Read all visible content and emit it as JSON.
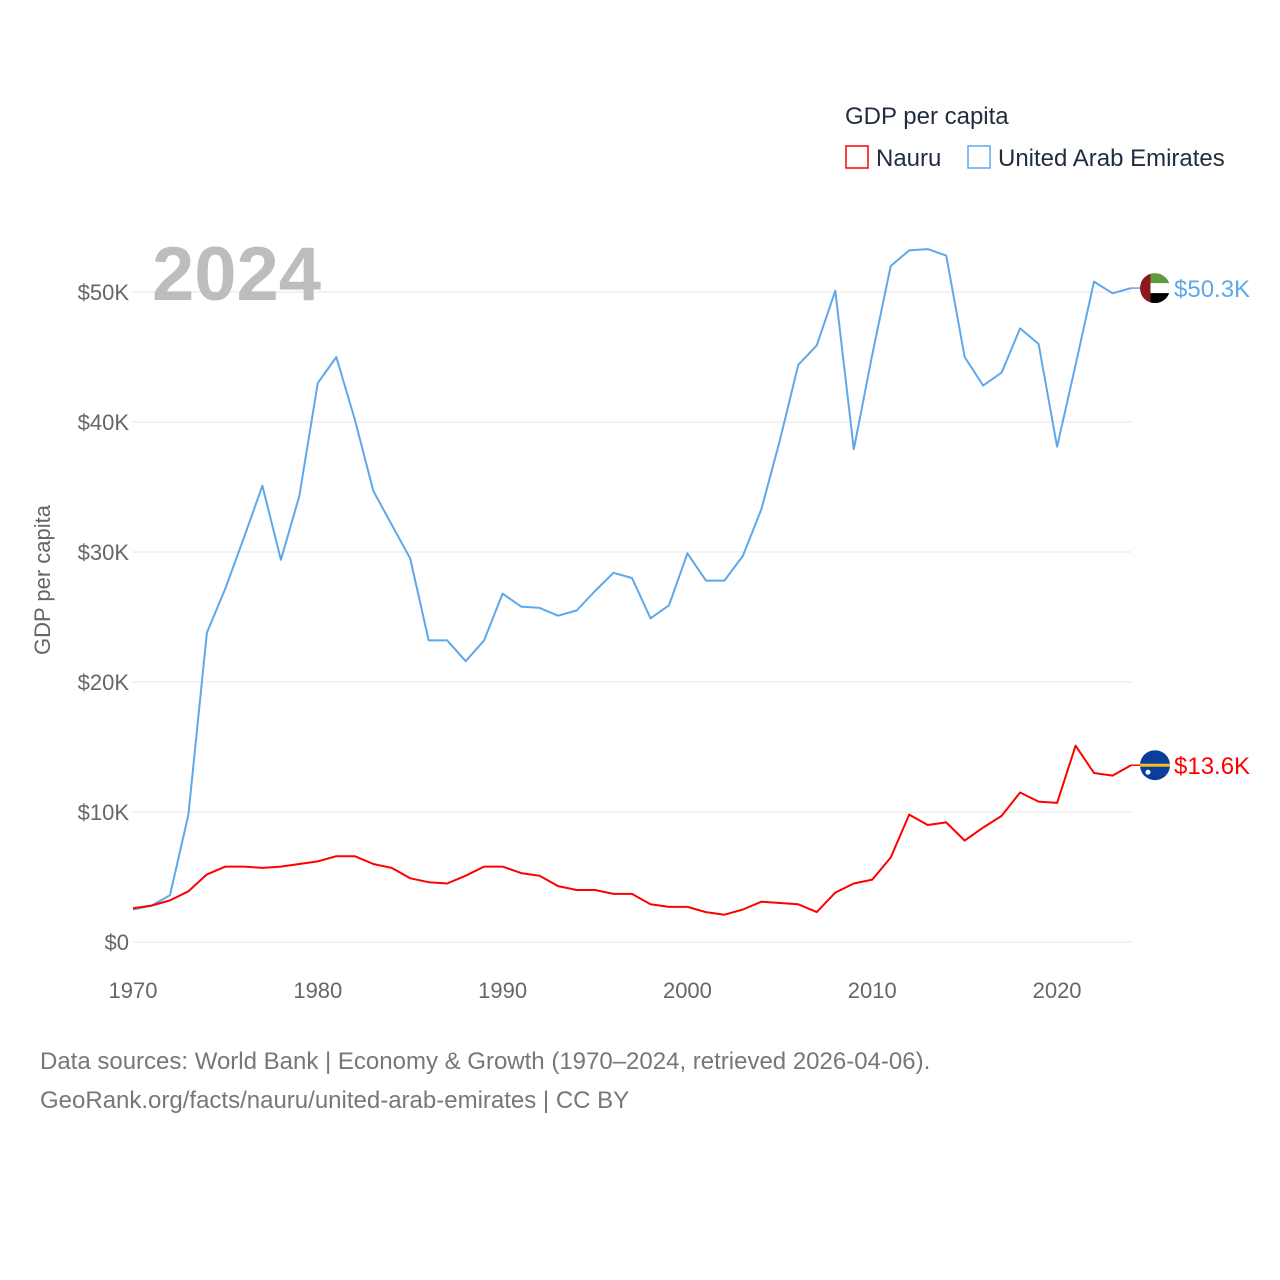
{
  "chart_data": {
    "type": "line",
    "title": "GDP per capita",
    "xlabel": "",
    "ylabel": "GDP per capita",
    "xlim": [
      1970,
      2024
    ],
    "ylim": [
      0,
      55000
    ],
    "grid": true,
    "legend_placement": "top-right",
    "legend_title": "GDP per capita",
    "year_label": "2024",
    "x_ticks": [
      1970,
      1980,
      1990,
      2000,
      2010,
      2020
    ],
    "x_tick_labels": [
      "1970",
      "1980",
      "1990",
      "2000",
      "2010",
      "2020"
    ],
    "y_ticks": [
      0,
      10000,
      20000,
      30000,
      40000,
      50000
    ],
    "y_tick_labels": [
      "$0",
      "$10K",
      "$20K",
      "$30K",
      "$40K",
      "$50K"
    ],
    "x": [
      1970,
      1971,
      1972,
      1973,
      1974,
      1975,
      1976,
      1977,
      1978,
      1979,
      1980,
      1981,
      1982,
      1983,
      1984,
      1985,
      1986,
      1987,
      1988,
      1989,
      1990,
      1991,
      1992,
      1993,
      1994,
      1995,
      1996,
      1997,
      1998,
      1999,
      2000,
      2001,
      2002,
      2003,
      2004,
      2005,
      2006,
      2007,
      2008,
      2009,
      2010,
      2011,
      2012,
      2013,
      2014,
      2015,
      2016,
      2017,
      2018,
      2019,
      2020,
      2021,
      2022,
      2023,
      2024
    ],
    "series": [
      {
        "name": "Nauru",
        "color": "#ff0000",
        "end_label": "$13.6K",
        "values": [
          2600,
          2800,
          3200,
          3900,
          5200,
          5800,
          5800,
          5700,
          5800,
          6000,
          6200,
          6600,
          6600,
          6000,
          5700,
          4900,
          4600,
          4500,
          5100,
          5800,
          5800,
          5300,
          5100,
          4300,
          4000,
          4000,
          3700,
          3700,
          2900,
          2700,
          2700,
          2300,
          2100,
          2500,
          3100,
          3000,
          2900,
          2300,
          3800,
          4500,
          4800,
          6500,
          9800,
          9000,
          9200,
          7800,
          8800,
          9700,
          11500,
          10800,
          10700,
          15100,
          13000,
          12800,
          13600
        ]
      },
      {
        "name": "United Arab Emirates",
        "color": "#5ea8ea",
        "end_label": "$50.3K",
        "values": [
          2500,
          2800,
          3600,
          9800,
          23800,
          27200,
          31100,
          35100,
          29400,
          34300,
          43000,
          45000,
          40200,
          34700,
          32100,
          29500,
          23200,
          23200,
          21600,
          23200,
          26800,
          25800,
          25700,
          25100,
          25500,
          27000,
          28400,
          28000,
          24900,
          25900,
          29900,
          27800,
          27800,
          29700,
          33300,
          38600,
          44400,
          45900,
          50100,
          37900,
          45200,
          52000,
          53200,
          53300,
          52800,
          45000,
          42800,
          43800,
          47200,
          46000,
          38100,
          44400,
          50800,
          49900,
          50300
        ]
      }
    ]
  },
  "footer": {
    "line1": "Data sources: World Bank | Economy & Growth (1970–2024, retrieved 2026-04-06).",
    "line2": "GeoRank.org/facts/nauru/united-arab-emirates | CC BY"
  }
}
